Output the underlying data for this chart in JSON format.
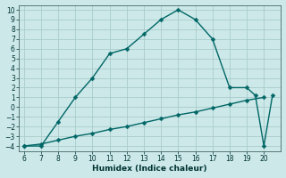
{
  "xlabel": "Humidex (Indice chaleur)",
  "background_color": "#cce8e8",
  "grid_color": "#aacccc",
  "line_color": "#006666",
  "xlim": [
    5.7,
    21.0
  ],
  "ylim": [
    -4.5,
    10.5
  ],
  "xticks": [
    6,
    7,
    8,
    9,
    10,
    11,
    12,
    13,
    14,
    15,
    16,
    17,
    18,
    19,
    20
  ],
  "yticks": [
    -4,
    -3,
    -2,
    -1,
    0,
    1,
    2,
    3,
    4,
    5,
    6,
    7,
    8,
    9,
    10
  ],
  "series1_x": [
    6,
    7,
    8,
    9,
    10,
    11,
    12,
    13,
    14,
    15,
    16,
    17,
    18,
    19,
    19.5,
    20,
    20.5
  ],
  "series1_y": [
    -4,
    -4,
    -1.5,
    1.0,
    3.0,
    5.5,
    6.0,
    7.5,
    9.0,
    10.0,
    9.0,
    7.0,
    2.0,
    2.0,
    1.2,
    -4.0,
    1.2
  ],
  "series2_x": [
    6,
    7,
    8,
    9,
    10,
    11,
    12,
    13,
    14,
    15,
    16,
    17,
    18,
    19,
    20
  ],
  "series2_y": [
    -4.0,
    -3.8,
    -3.4,
    -3.0,
    -2.7,
    -2.3,
    -2.0,
    -1.6,
    -1.2,
    -0.8,
    -0.5,
    -0.1,
    0.3,
    0.7,
    1.0
  ],
  "marker": "D",
  "marker_size": 2.5,
  "linewidth": 1.0,
  "tick_labelsize": 5.5,
  "xlabel_fontsize": 6.5
}
